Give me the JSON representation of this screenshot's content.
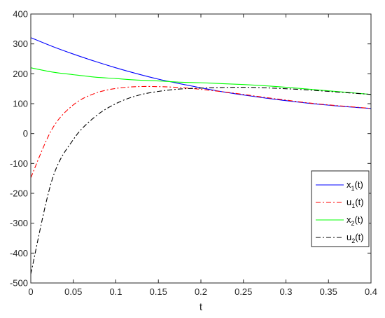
{
  "chart_data": {
    "type": "line",
    "title": "",
    "xlabel": "t",
    "ylabel": "",
    "xlim": [
      0,
      0.4
    ],
    "ylim": [
      -500,
      400
    ],
    "xticks": [
      0,
      0.05,
      0.1,
      0.15,
      0.2,
      0.25,
      0.3,
      0.35,
      0.4
    ],
    "xtick_labels": [
      "0",
      "0.05",
      "0.1",
      "0.15",
      "0.2",
      "0.25",
      "0.3",
      "0.35",
      "0.4"
    ],
    "yticks": [
      -500,
      -400,
      -300,
      -200,
      -100,
      0,
      100,
      200,
      300,
      400
    ],
    "ytick_labels": [
      "-500",
      "-400",
      "-300",
      "-200",
      "-100",
      "0",
      "100",
      "200",
      "300",
      "400"
    ],
    "grid": false,
    "legend_position": "bottom-right",
    "x": [
      0,
      0.025,
      0.05,
      0.075,
      0.1,
      0.125,
      0.15,
      0.175,
      0.2,
      0.225,
      0.25,
      0.275,
      0.3,
      0.325,
      0.35,
      0.375,
      0.4
    ],
    "series": [
      {
        "name": "x",
        "subscript": "1",
        "suffix": "(t)",
        "color": "#0000ff",
        "dash": "solid",
        "values": [
          321,
          292,
          266,
          242,
          220,
          200,
          182,
          167,
          153,
          140,
          129,
          119,
          110,
          102,
          95,
          89,
          84
        ]
      },
      {
        "name": "u",
        "subscript": "1",
        "suffix": "(t)",
        "color": "#ff0000",
        "dash": "dashdot",
        "values": [
          -148,
          15,
          96,
          134,
          151,
          157,
          157,
          154,
          148,
          140,
          131,
          121,
          112,
          103,
          96,
          90,
          84
        ]
      },
      {
        "name": "x",
        "subscript": "2",
        "suffix": "(t)",
        "color": "#00ff00",
        "dash": "solid",
        "values": [
          220,
          206,
          197,
          189,
          184,
          179,
          176,
          172,
          170,
          167,
          164,
          160,
          155,
          149,
          143,
          137,
          131
        ]
      },
      {
        "name": "u",
        "subscript": "2",
        "suffix": "(t)",
        "color": "#000000",
        "dash": "dashdot",
        "values": [
          -470,
          -155,
          -20,
          55,
          100,
          127,
          141,
          149,
          152,
          154,
          155,
          153,
          150,
          146,
          141,
          136,
          131
        ]
      }
    ]
  }
}
